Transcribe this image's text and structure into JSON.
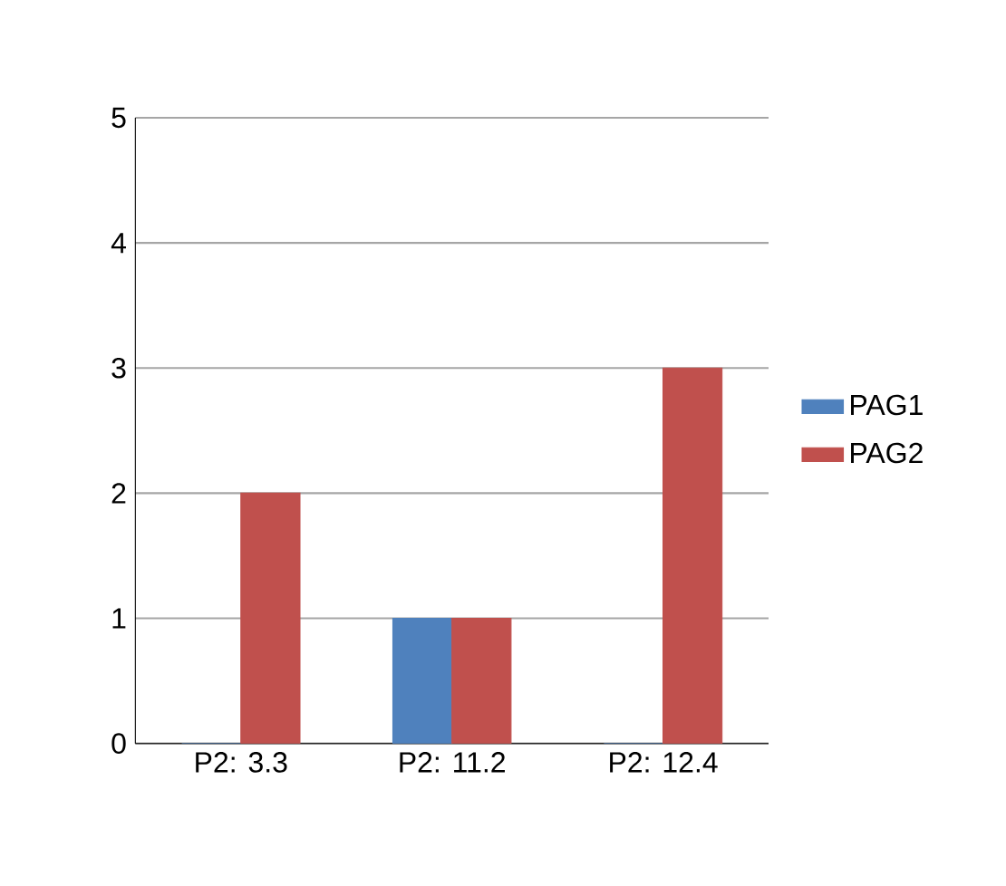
{
  "chart_data": {
    "type": "bar",
    "categories": [
      "P2: 3.3",
      "P2: 11.2",
      "P2: 12.4"
    ],
    "series": [
      {
        "name": "PAG1",
        "color": "#4f81bd",
        "values": [
          0,
          1,
          0
        ]
      },
      {
        "name": "PAG2",
        "color": "#c0504d",
        "values": [
          2,
          1,
          3
        ]
      }
    ],
    "ylim": [
      0,
      5
    ],
    "yticks": [
      0,
      1,
      2,
      3,
      4,
      5
    ],
    "grid": "y",
    "legend": "right"
  }
}
